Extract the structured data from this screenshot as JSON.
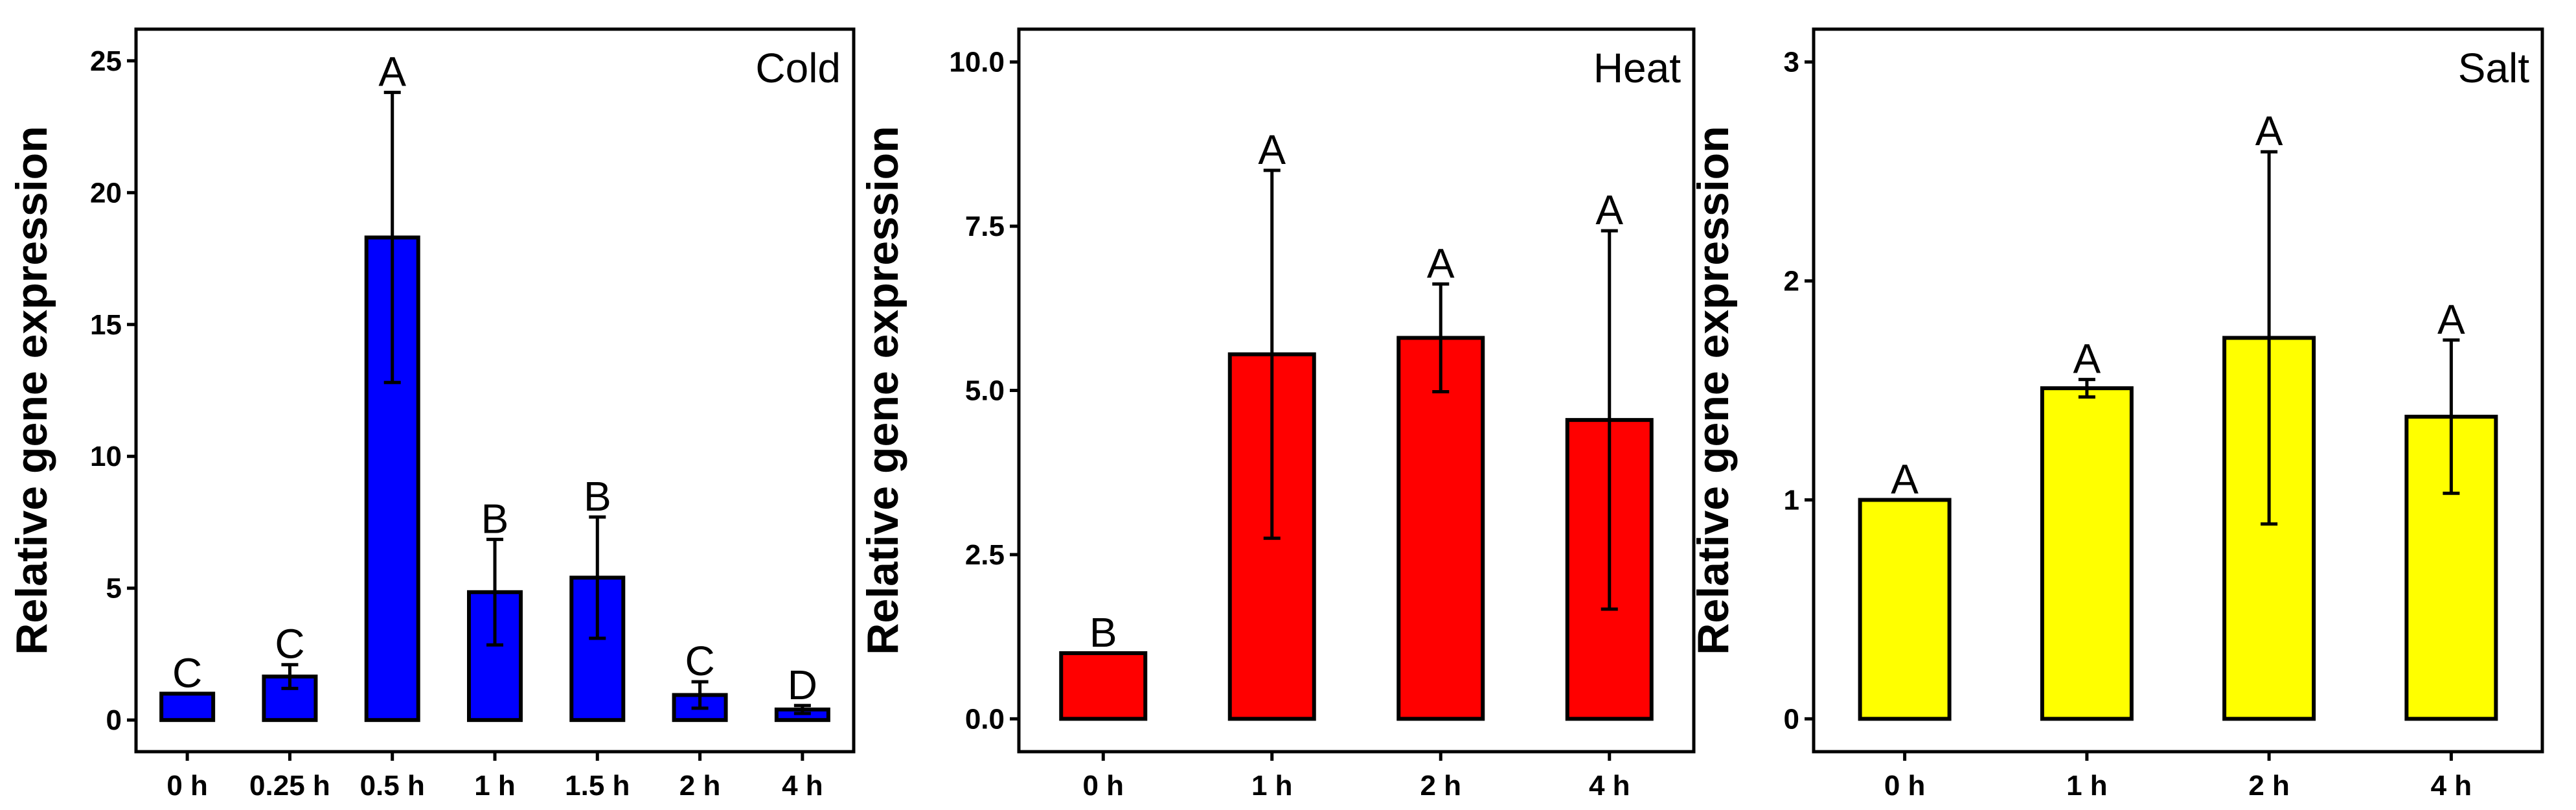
{
  "chart_data": [
    {
      "type": "bar",
      "title": "Cold",
      "ylabel": "Relative gene expression",
      "xlabel": "",
      "color": "#0000FF",
      "categories": [
        "0 h",
        "0.25 h",
        "0.5 h",
        "1 h",
        "1.5 h",
        "2 h",
        "4 h"
      ],
      "values": [
        1.0,
        1.65,
        18.3,
        4.85,
        5.4,
        0.95,
        0.4
      ],
      "errors": [
        0.0,
        0.45,
        5.5,
        2.0,
        2.3,
        0.5,
        0.15
      ],
      "significance": [
        "C",
        "C",
        "A",
        "B",
        "B",
        "C",
        "D"
      ],
      "ylim": [
        -1.2,
        26.2
      ],
      "yticks": [
        0,
        5,
        10,
        15,
        20,
        25
      ],
      "ytick_labels": [
        "0",
        "5",
        "10",
        "15",
        "20",
        "25"
      ]
    },
    {
      "type": "bar",
      "title": "Heat",
      "ylabel": "Relative gene expression",
      "xlabel": "",
      "color": "#FF0000",
      "categories": [
        "0 h",
        "1 h",
        "2 h",
        "4 h"
      ],
      "values": [
        1.0,
        5.55,
        5.8,
        4.55
      ],
      "errors": [
        0.0,
        2.8,
        0.82,
        2.88
      ],
      "significance": [
        "B",
        "A",
        "A",
        "A"
      ],
      "ylim": [
        -0.5,
        10.5
      ],
      "yticks": [
        0,
        2.5,
        5,
        7.5,
        10
      ],
      "ytick_labels": [
        "0.0",
        "2.5",
        "5.0",
        "7.5",
        "10.0"
      ]
    },
    {
      "type": "bar",
      "title": "Salt",
      "ylabel": "Relative gene expression",
      "xlabel": "",
      "color": "#FFFF00",
      "categories": [
        "0 h",
        "1 h",
        "2 h",
        "4 h"
      ],
      "values": [
        1.0,
        1.51,
        1.74,
        1.38
      ],
      "errors": [
        0.0,
        0.04,
        0.85,
        0.35
      ],
      "significance": [
        "A",
        "A",
        "A",
        "A"
      ],
      "ylim": [
        -0.15,
        3.15
      ],
      "yticks": [
        0,
        1,
        2,
        3
      ],
      "ytick_labels": [
        "0",
        "1",
        "2",
        "3"
      ]
    }
  ]
}
